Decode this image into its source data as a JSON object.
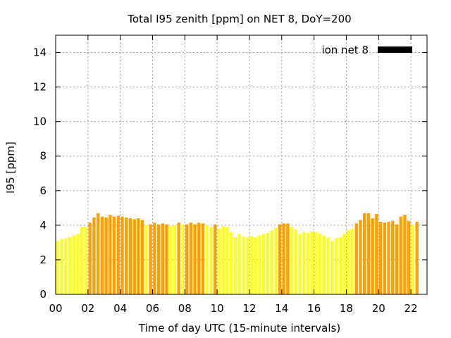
{
  "chart_data": {
    "type": "bar",
    "title": "Total I95 zenith [ppm] on NET 8, DoY=200",
    "xlabel": "Time of day UTC (15-minute intervals)",
    "ylabel": "I95 [ppm]",
    "xlim": [
      0,
      23
    ],
    "ylim": [
      0,
      15
    ],
    "x_ticks": [
      "00",
      "02",
      "04",
      "06",
      "08",
      "10",
      "12",
      "14",
      "16",
      "18",
      "20",
      "22"
    ],
    "y_ticks": [
      "0",
      "2",
      "4",
      "6",
      "8",
      "10",
      "12",
      "14"
    ],
    "grid": true,
    "legend": {
      "position": "top-right",
      "entries": [
        {
          "label": "ion net 8",
          "color": "#000000"
        }
      ]
    },
    "colors": {
      "low": "#ffff22",
      "high": "#ff9f00"
    },
    "series": [
      {
        "name": "ion net 8",
        "interval_hours": 0.25,
        "values": [
          3.1,
          3.2,
          3.25,
          3.3,
          3.4,
          3.5,
          3.9,
          3.9,
          4.15,
          4.45,
          4.7,
          4.5,
          4.45,
          4.6,
          4.5,
          4.55,
          4.5,
          4.45,
          4.4,
          4.35,
          4.4,
          4.3,
          4.0,
          4.05,
          4.15,
          4.05,
          4.1,
          4.05,
          3.95,
          4.0,
          4.15,
          4.05,
          4.05,
          4.15,
          4.05,
          4.15,
          4.1,
          4.0,
          3.9,
          4.05,
          3.8,
          3.95,
          3.9,
          3.6,
          3.3,
          3.5,
          3.35,
          3.3,
          3.35,
          3.3,
          3.4,
          3.5,
          3.55,
          3.7,
          3.85,
          4.05,
          4.1,
          4.1,
          3.9,
          3.75,
          3.5,
          3.6,
          3.55,
          3.65,
          3.6,
          3.5,
          3.4,
          3.3,
          3.1,
          3.25,
          3.3,
          3.5,
          3.7,
          3.8,
          4.1,
          4.3,
          4.7,
          4.7,
          4.4,
          4.65,
          4.2,
          4.15,
          4.2,
          4.25,
          4.05,
          4.5,
          4.6,
          4.25,
          4.0,
          4.2
        ],
        "highlighted": [
          0,
          0,
          0,
          0,
          0,
          0,
          0,
          0,
          1,
          1,
          1,
          1,
          1,
          1,
          1,
          1,
          1,
          1,
          1,
          1,
          1,
          1,
          0,
          1,
          1,
          1,
          1,
          1,
          0,
          0,
          1,
          0,
          1,
          1,
          1,
          1,
          1,
          0,
          0,
          1,
          0,
          0,
          0,
          0,
          0,
          0,
          0,
          0,
          0,
          0,
          0,
          0,
          0,
          0,
          0,
          1,
          1,
          1,
          0,
          0,
          0,
          0,
          0,
          0,
          0,
          0,
          0,
          0,
          0,
          0,
          0,
          0,
          0,
          0,
          1,
          1,
          1,
          1,
          1,
          1,
          1,
          1,
          1,
          1,
          1,
          1,
          1,
          1,
          0,
          1
        ]
      }
    ]
  }
}
